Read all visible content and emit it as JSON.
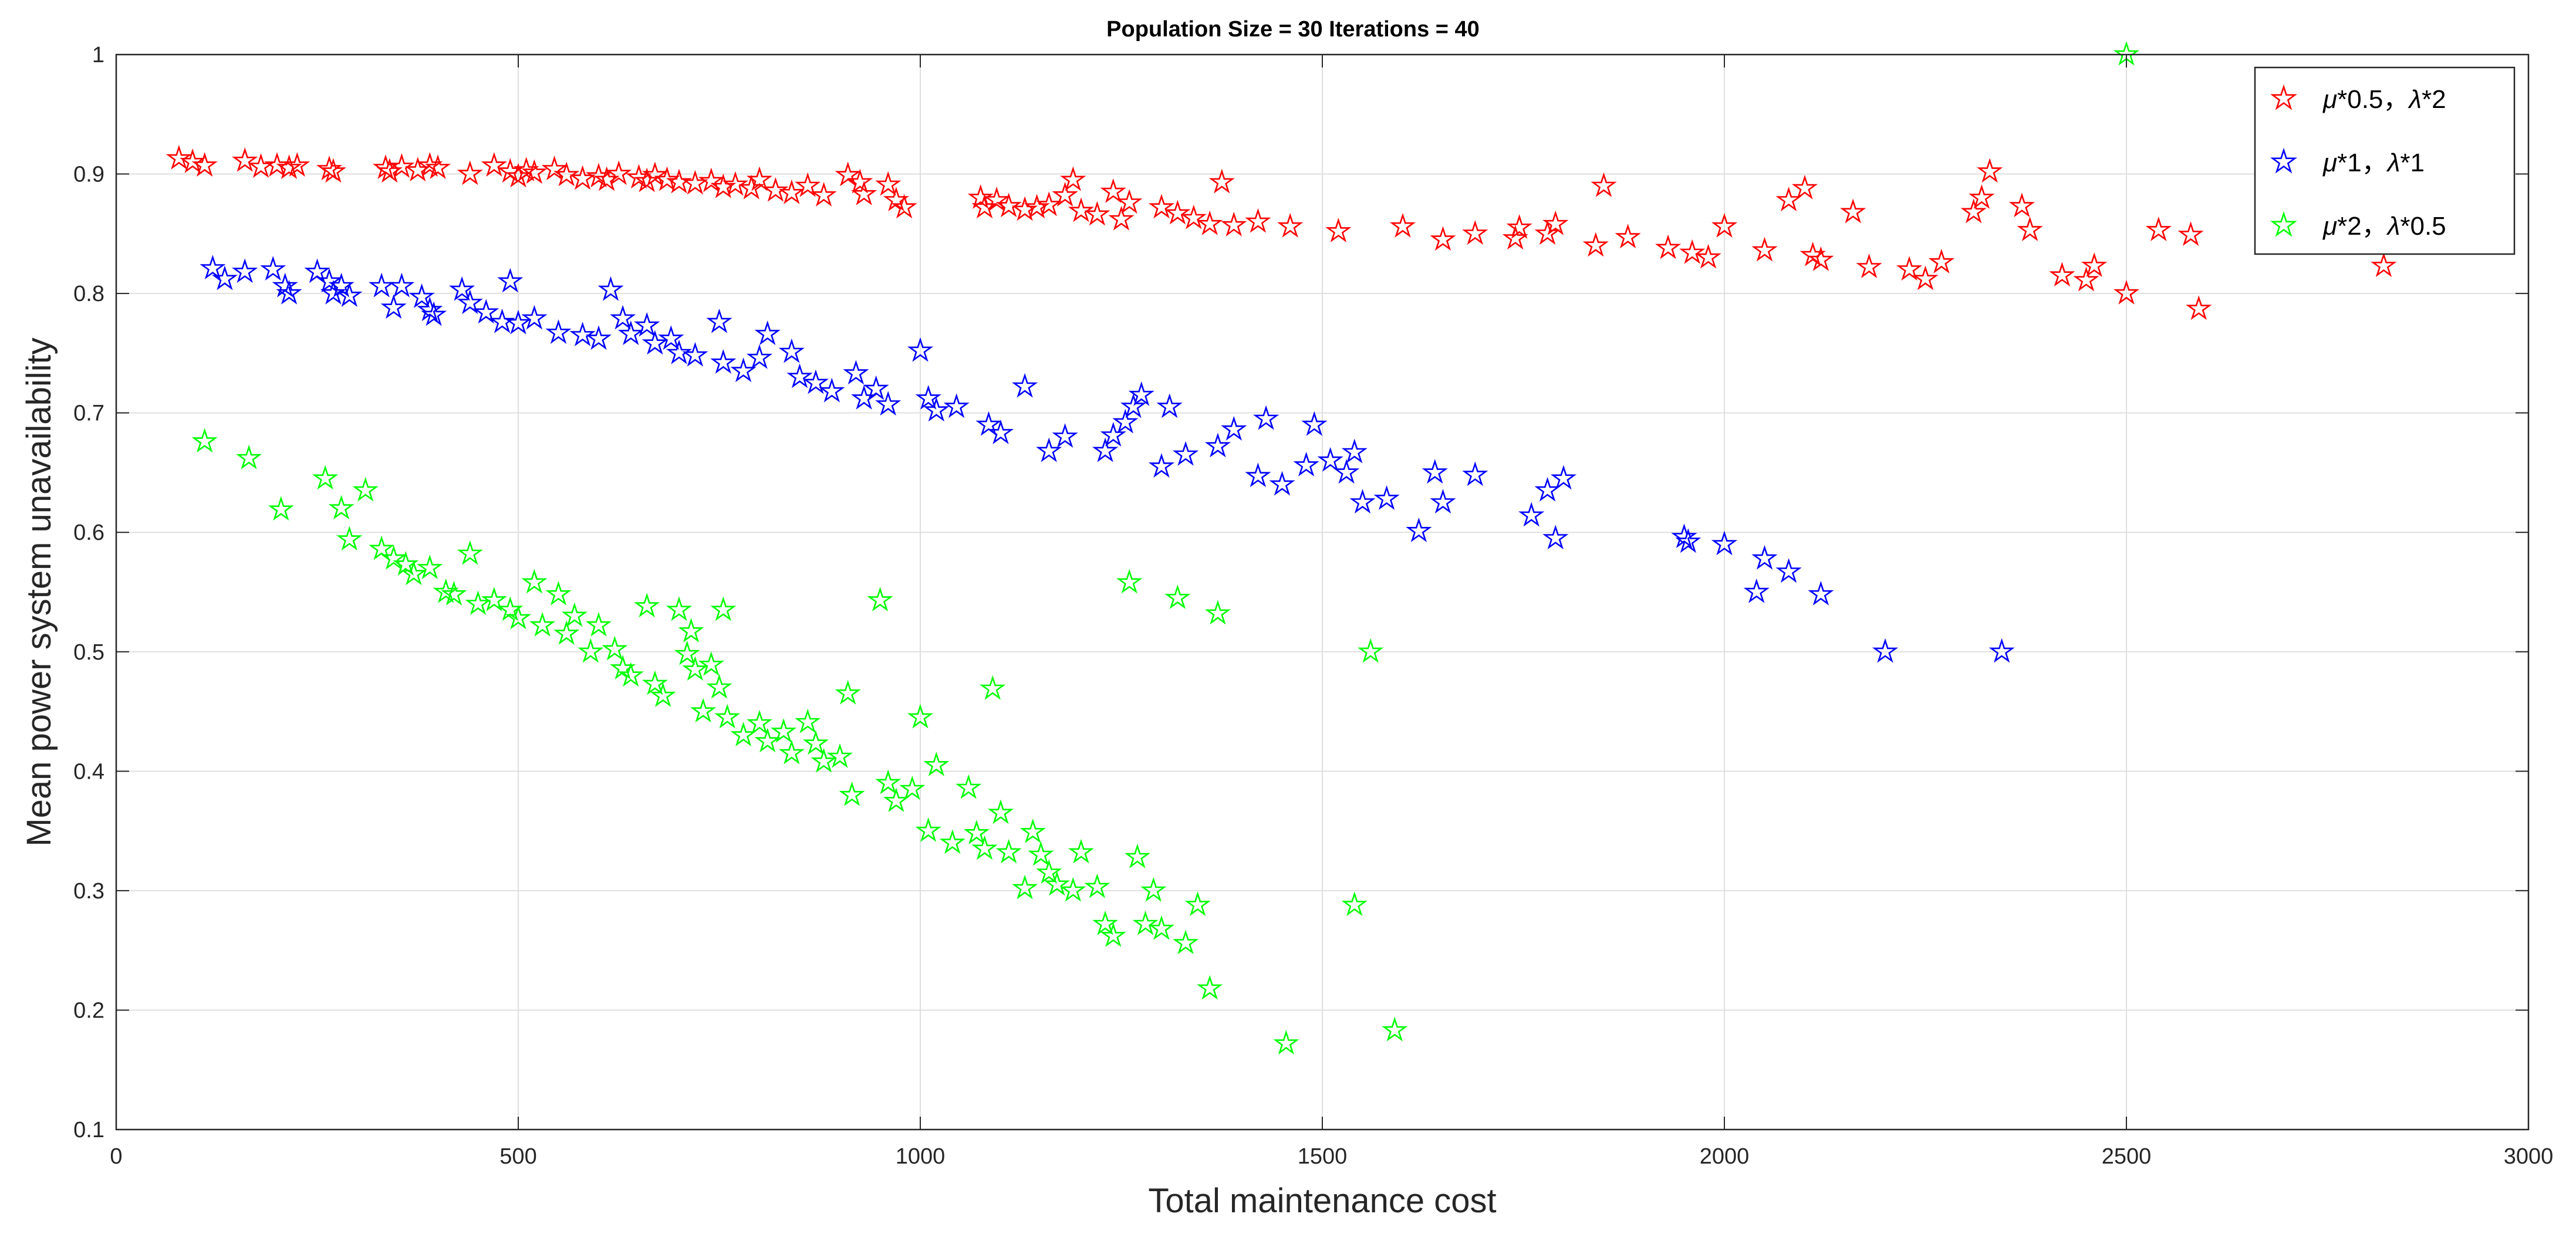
{
  "chart_data": {
    "type": "scatter",
    "title": "Population Size = 30 Iterations = 40",
    "xlabel": "Total maintenance cost",
    "ylabel": "Mean power system unavailability",
    "xlim": [
      0,
      3000
    ],
    "ylim": [
      0.1,
      1
    ],
    "xticks": [
      0,
      500,
      1000,
      1500,
      2000,
      2500,
      3000
    ],
    "yticks": [
      0.1,
      0.2,
      0.3,
      0.4,
      0.5,
      0.6,
      0.7,
      0.8,
      0.9,
      1
    ],
    "xtick_labels": [
      "0",
      "500",
      "1000",
      "1500",
      "2000",
      "2500",
      "3000"
    ],
    "ytick_labels": [
      "0.1",
      "0.2",
      "0.3",
      "0.4",
      "0.5",
      "0.6",
      "0.7",
      "0.8",
      "0.9",
      "1"
    ],
    "grid": true,
    "marker": "pentagram",
    "legend_position": "top-right",
    "series": [
      {
        "name": "μ*0.5，λ*2",
        "legend_parts": [
          "μ",
          "*0.5，",
          "λ",
          "*2"
        ],
        "color": "#ff0000",
        "points": [
          [
            78,
            0.913
          ],
          [
            95,
            0.91
          ],
          [
            110,
            0.907
          ],
          [
            160,
            0.911
          ],
          [
            180,
            0.906
          ],
          [
            200,
            0.907
          ],
          [
            215,
            0.905
          ],
          [
            225,
            0.907
          ],
          [
            265,
            0.904
          ],
          [
            270,
            0.902
          ],
          [
            335,
            0.905
          ],
          [
            340,
            0.902
          ],
          [
            355,
            0.906
          ],
          [
            375,
            0.903
          ],
          [
            390,
            0.907
          ],
          [
            400,
            0.905
          ],
          [
            440,
            0.9
          ],
          [
            470,
            0.907
          ],
          [
            490,
            0.902
          ],
          [
            500,
            0.898
          ],
          [
            510,
            0.903
          ],
          [
            520,
            0.901
          ],
          [
            545,
            0.904
          ],
          [
            560,
            0.899
          ],
          [
            580,
            0.896
          ],
          [
            600,
            0.898
          ],
          [
            610,
            0.895
          ],
          [
            625,
            0.9
          ],
          [
            650,
            0.897
          ],
          [
            660,
            0.894
          ],
          [
            670,
            0.899
          ],
          [
            685,
            0.895
          ],
          [
            700,
            0.893
          ],
          [
            720,
            0.892
          ],
          [
            740,
            0.894
          ],
          [
            755,
            0.889
          ],
          [
            770,
            0.891
          ],
          [
            790,
            0.888
          ],
          [
            800,
            0.895
          ],
          [
            820,
            0.886
          ],
          [
            840,
            0.884
          ],
          [
            860,
            0.89
          ],
          [
            880,
            0.882
          ],
          [
            910,
            0.899
          ],
          [
            925,
            0.893
          ],
          [
            930,
            0.883
          ],
          [
            960,
            0.891
          ],
          [
            970,
            0.878
          ],
          [
            980,
            0.872
          ],
          [
            1075,
            0.88
          ],
          [
            1080,
            0.872
          ],
          [
            1095,
            0.878
          ],
          [
            1110,
            0.873
          ],
          [
            1130,
            0.87
          ],
          [
            1145,
            0.872
          ],
          [
            1160,
            0.874
          ],
          [
            1180,
            0.882
          ],
          [
            1190,
            0.895
          ],
          [
            1200,
            0.869
          ],
          [
            1220,
            0.866
          ],
          [
            1240,
            0.885
          ],
          [
            1250,
            0.862
          ],
          [
            1260,
            0.876
          ],
          [
            1300,
            0.872
          ],
          [
            1320,
            0.867
          ],
          [
            1340,
            0.863
          ],
          [
            1360,
            0.858
          ],
          [
            1375,
            0.893
          ],
          [
            1390,
            0.857
          ],
          [
            1420,
            0.86
          ],
          [
            1460,
            0.856
          ],
          [
            1520,
            0.852
          ],
          [
            1600,
            0.856
          ],
          [
            1650,
            0.845
          ],
          [
            1690,
            0.85
          ],
          [
            1740,
            0.846
          ],
          [
            1745,
            0.855
          ],
          [
            1780,
            0.85
          ],
          [
            1790,
            0.858
          ],
          [
            1840,
            0.84
          ],
          [
            1850,
            0.89
          ],
          [
            1880,
            0.847
          ],
          [
            1930,
            0.838
          ],
          [
            1960,
            0.834
          ],
          [
            1980,
            0.83
          ],
          [
            2000,
            0.856
          ],
          [
            2050,
            0.836
          ],
          [
            2080,
            0.878
          ],
          [
            2100,
            0.888
          ],
          [
            2110,
            0.832
          ],
          [
            2120,
            0.828
          ],
          [
            2160,
            0.868
          ],
          [
            2180,
            0.822
          ],
          [
            2230,
            0.82
          ],
          [
            2250,
            0.812
          ],
          [
            2270,
            0.826
          ],
          [
            2310,
            0.868
          ],
          [
            2320,
            0.88
          ],
          [
            2330,
            0.902
          ],
          [
            2370,
            0.873
          ],
          [
            2380,
            0.853
          ],
          [
            2420,
            0.815
          ],
          [
            2450,
            0.811
          ],
          [
            2460,
            0.823
          ],
          [
            2500,
            0.8
          ],
          [
            2540,
            0.853
          ],
          [
            2580,
            0.849
          ],
          [
            2590,
            0.787
          ],
          [
            2820,
            0.823
          ]
        ]
      },
      {
        "name": "μ*1，λ*1",
        "legend_parts": [
          "μ",
          "*1，",
          "λ",
          "*1"
        ],
        "color": "#0000ff",
        "points": [
          [
            120,
            0.821
          ],
          [
            135,
            0.812
          ],
          [
            160,
            0.818
          ],
          [
            195,
            0.82
          ],
          [
            210,
            0.806
          ],
          [
            215,
            0.8
          ],
          [
            250,
            0.818
          ],
          [
            265,
            0.81
          ],
          [
            270,
            0.8
          ],
          [
            280,
            0.806
          ],
          [
            290,
            0.798
          ],
          [
            330,
            0.806
          ],
          [
            345,
            0.788
          ],
          [
            355,
            0.806
          ],
          [
            380,
            0.797
          ],
          [
            390,
            0.786
          ],
          [
            395,
            0.782
          ],
          [
            430,
            0.803
          ],
          [
            440,
            0.792
          ],
          [
            460,
            0.784
          ],
          [
            480,
            0.776
          ],
          [
            490,
            0.81
          ],
          [
            500,
            0.775
          ],
          [
            520,
            0.779
          ],
          [
            550,
            0.767
          ],
          [
            580,
            0.765
          ],
          [
            600,
            0.762
          ],
          [
            615,
            0.803
          ],
          [
            630,
            0.779
          ],
          [
            640,
            0.766
          ],
          [
            660,
            0.773
          ],
          [
            670,
            0.758
          ],
          [
            690,
            0.762
          ],
          [
            700,
            0.75
          ],
          [
            720,
            0.748
          ],
          [
            750,
            0.776
          ],
          [
            755,
            0.742
          ],
          [
            780,
            0.735
          ],
          [
            800,
            0.746
          ],
          [
            810,
            0.766
          ],
          [
            840,
            0.751
          ],
          [
            850,
            0.73
          ],
          [
            870,
            0.725
          ],
          [
            890,
            0.718
          ],
          [
            920,
            0.733
          ],
          [
            930,
            0.712
          ],
          [
            945,
            0.72
          ],
          [
            960,
            0.707
          ],
          [
            1000,
            0.752
          ],
          [
            1010,
            0.712
          ],
          [
            1020,
            0.702
          ],
          [
            1045,
            0.705
          ],
          [
            1085,
            0.69
          ],
          [
            1100,
            0.683
          ],
          [
            1130,
            0.722
          ],
          [
            1160,
            0.668
          ],
          [
            1180,
            0.68
          ],
          [
            1230,
            0.668
          ],
          [
            1240,
            0.681
          ],
          [
            1255,
            0.692
          ],
          [
            1265,
            0.705
          ],
          [
            1275,
            0.715
          ],
          [
            1300,
            0.655
          ],
          [
            1310,
            0.705
          ],
          [
            1330,
            0.665
          ],
          [
            1370,
            0.672
          ],
          [
            1390,
            0.686
          ],
          [
            1420,
            0.647
          ],
          [
            1430,
            0.695
          ],
          [
            1450,
            0.64
          ],
          [
            1480,
            0.656
          ],
          [
            1490,
            0.69
          ],
          [
            1510,
            0.66
          ],
          [
            1530,
            0.65
          ],
          [
            1540,
            0.667
          ],
          [
            1550,
            0.625
          ],
          [
            1580,
            0.628
          ],
          [
            1620,
            0.601
          ],
          [
            1640,
            0.65
          ],
          [
            1650,
            0.625
          ],
          [
            1690,
            0.648
          ],
          [
            1760,
            0.614
          ],
          [
            1780,
            0.635
          ],
          [
            1790,
            0.595
          ],
          [
            1800,
            0.645
          ],
          [
            1950,
            0.596
          ],
          [
            1955,
            0.592
          ],
          [
            2000,
            0.59
          ],
          [
            2040,
            0.55
          ],
          [
            2050,
            0.578
          ],
          [
            2080,
            0.567
          ],
          [
            2120,
            0.548
          ],
          [
            2200,
            0.5
          ],
          [
            2345,
            0.5
          ]
        ]
      },
      {
        "name": "μ*2，λ*0.5",
        "legend_parts": [
          "μ",
          "*2，",
          "λ",
          "*0.5"
        ],
        "color": "#00ff00",
        "points": [
          [
            110,
            0.676
          ],
          [
            165,
            0.662
          ],
          [
            205,
            0.619
          ],
          [
            260,
            0.645
          ],
          [
            280,
            0.62
          ],
          [
            290,
            0.594
          ],
          [
            310,
            0.635
          ],
          [
            330,
            0.586
          ],
          [
            345,
            0.578
          ],
          [
            360,
            0.573
          ],
          [
            370,
            0.565
          ],
          [
            390,
            0.57
          ],
          [
            410,
            0.55
          ],
          [
            420,
            0.548
          ],
          [
            440,
            0.582
          ],
          [
            450,
            0.54
          ],
          [
            470,
            0.543
          ],
          [
            490,
            0.535
          ],
          [
            500,
            0.528
          ],
          [
            520,
            0.558
          ],
          [
            530,
            0.522
          ],
          [
            550,
            0.548
          ],
          [
            560,
            0.515
          ],
          [
            570,
            0.53
          ],
          [
            590,
            0.5
          ],
          [
            600,
            0.522
          ],
          [
            620,
            0.502
          ],
          [
            630,
            0.486
          ],
          [
            640,
            0.48
          ],
          [
            660,
            0.538
          ],
          [
            670,
            0.473
          ],
          [
            680,
            0.463
          ],
          [
            700,
            0.535
          ],
          [
            710,
            0.498
          ],
          [
            715,
            0.517
          ],
          [
            720,
            0.485
          ],
          [
            730,
            0.45
          ],
          [
            740,
            0.489
          ],
          [
            750,
            0.47
          ],
          [
            755,
            0.535
          ],
          [
            760,
            0.445
          ],
          [
            780,
            0.43
          ],
          [
            800,
            0.44
          ],
          [
            810,
            0.425
          ],
          [
            830,
            0.433
          ],
          [
            840,
            0.415
          ],
          [
            860,
            0.441
          ],
          [
            870,
            0.423
          ],
          [
            880,
            0.408
          ],
          [
            900,
            0.412
          ],
          [
            910,
            0.465
          ],
          [
            915,
            0.38
          ],
          [
            950,
            0.543
          ],
          [
            960,
            0.39
          ],
          [
            970,
            0.375
          ],
          [
            990,
            0.385
          ],
          [
            1000,
            0.445
          ],
          [
            1010,
            0.35
          ],
          [
            1020,
            0.405
          ],
          [
            1040,
            0.34
          ],
          [
            1060,
            0.386
          ],
          [
            1070,
            0.348
          ],
          [
            1080,
            0.335
          ],
          [
            1090,
            0.469
          ],
          [
            1100,
            0.365
          ],
          [
            1110,
            0.332
          ],
          [
            1130,
            0.302
          ],
          [
            1140,
            0.349
          ],
          [
            1150,
            0.33
          ],
          [
            1160,
            0.315
          ],
          [
            1170,
            0.305
          ],
          [
            1190,
            0.3
          ],
          [
            1200,
            0.332
          ],
          [
            1220,
            0.303
          ],
          [
            1230,
            0.272
          ],
          [
            1240,
            0.262
          ],
          [
            1260,
            0.558
          ],
          [
            1270,
            0.328
          ],
          [
            1280,
            0.272
          ],
          [
            1290,
            0.3
          ],
          [
            1300,
            0.268
          ],
          [
            1320,
            0.545
          ],
          [
            1330,
            0.256
          ],
          [
            1345,
            0.288
          ],
          [
            1360,
            0.218
          ],
          [
            1370,
            0.532
          ],
          [
            1455,
            0.172
          ],
          [
            1540,
            0.288
          ],
          [
            1560,
            0.5
          ],
          [
            1590,
            0.183
          ],
          [
            2500,
            1.0
          ]
        ]
      }
    ]
  }
}
